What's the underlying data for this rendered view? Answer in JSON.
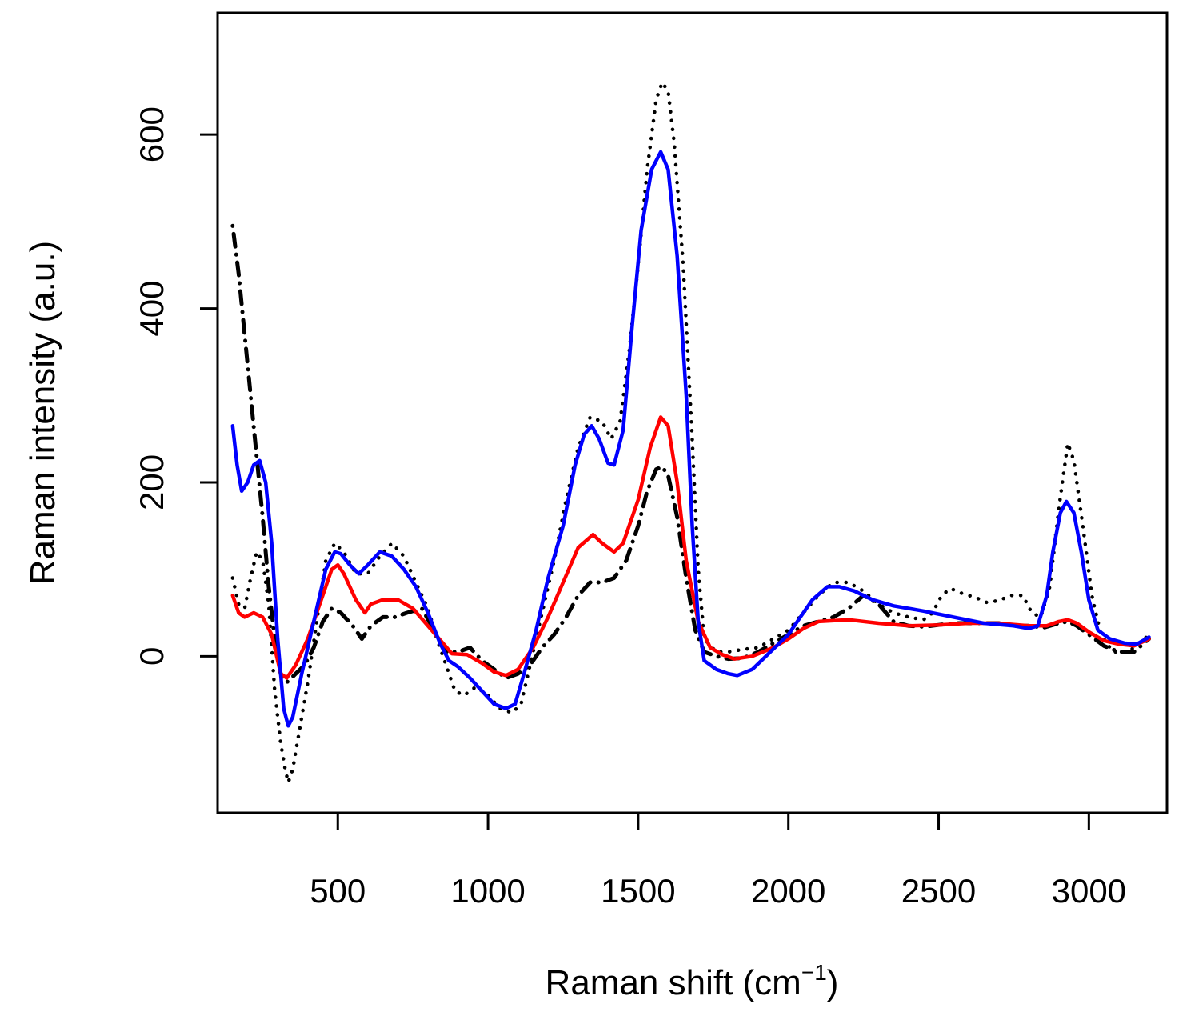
{
  "chart_data": {
    "type": "line",
    "title": "",
    "xlabel": "Raman shift (cm",
    "xlabel_superscript": "−1",
    "xlabel_suffix": ")",
    "ylabel": "Raman intensity (a.u.)",
    "xlim": [
      100,
      3260
    ],
    "ylim": [
      -180,
      740
    ],
    "x_ticks": [
      500,
      1000,
      1500,
      2000,
      2500,
      3000
    ],
    "y_ticks": [
      0,
      200,
      400,
      600
    ],
    "legend": "none",
    "grid": false,
    "series": [
      {
        "color": "#ff0000",
        "line_style": "solid",
        "points": [
          [
            150,
            70
          ],
          [
            170,
            50
          ],
          [
            190,
            45
          ],
          [
            220,
            50
          ],
          [
            250,
            45
          ],
          [
            280,
            25
          ],
          [
            310,
            -20
          ],
          [
            330,
            -25
          ],
          [
            360,
            -10
          ],
          [
            400,
            20
          ],
          [
            440,
            60
          ],
          [
            480,
            100
          ],
          [
            500,
            105
          ],
          [
            520,
            95
          ],
          [
            560,
            65
          ],
          [
            590,
            50
          ],
          [
            610,
            60
          ],
          [
            650,
            65
          ],
          [
            700,
            65
          ],
          [
            750,
            55
          ],
          [
            800,
            35
          ],
          [
            850,
            15
          ],
          [
            880,
            3
          ],
          [
            930,
            2
          ],
          [
            980,
            -8
          ],
          [
            1020,
            -18
          ],
          [
            1060,
            -22
          ],
          [
            1100,
            -15
          ],
          [
            1150,
            10
          ],
          [
            1200,
            45
          ],
          [
            1250,
            85
          ],
          [
            1300,
            125
          ],
          [
            1350,
            140
          ],
          [
            1380,
            130
          ],
          [
            1420,
            120
          ],
          [
            1450,
            130
          ],
          [
            1500,
            180
          ],
          [
            1540,
            240
          ],
          [
            1575,
            275
          ],
          [
            1600,
            265
          ],
          [
            1630,
            200
          ],
          [
            1660,
            110
          ],
          [
            1700,
            40
          ],
          [
            1740,
            10
          ],
          [
            1780,
            2
          ],
          [
            1820,
            -3
          ],
          [
            1880,
            0
          ],
          [
            1950,
            10
          ],
          [
            2000,
            20
          ],
          [
            2050,
            32
          ],
          [
            2100,
            40
          ],
          [
            2200,
            42
          ],
          [
            2300,
            38
          ],
          [
            2400,
            35
          ],
          [
            2500,
            36
          ],
          [
            2600,
            38
          ],
          [
            2700,
            38
          ],
          [
            2800,
            35
          ],
          [
            2860,
            35
          ],
          [
            2900,
            40
          ],
          [
            2930,
            42
          ],
          [
            2960,
            38
          ],
          [
            3000,
            28
          ],
          [
            3050,
            18
          ],
          [
            3100,
            14
          ],
          [
            3150,
            12
          ],
          [
            3200,
            20
          ]
        ]
      },
      {
        "color": "#0000ff",
        "line_style": "solid",
        "points": [
          [
            150,
            265
          ],
          [
            165,
            220
          ],
          [
            180,
            190
          ],
          [
            200,
            200
          ],
          [
            220,
            220
          ],
          [
            240,
            225
          ],
          [
            260,
            200
          ],
          [
            280,
            130
          ],
          [
            300,
            20
          ],
          [
            320,
            -60
          ],
          [
            335,
            -80
          ],
          [
            350,
            -70
          ],
          [
            380,
            -20
          ],
          [
            420,
            40
          ],
          [
            460,
            100
          ],
          [
            490,
            120
          ],
          [
            510,
            118
          ],
          [
            540,
            105
          ],
          [
            570,
            95
          ],
          [
            600,
            105
          ],
          [
            640,
            120
          ],
          [
            680,
            115
          ],
          [
            720,
            100
          ],
          [
            760,
            80
          ],
          [
            800,
            50
          ],
          [
            840,
            15
          ],
          [
            870,
            -5
          ],
          [
            900,
            -12
          ],
          [
            940,
            -25
          ],
          [
            980,
            -40
          ],
          [
            1020,
            -55
          ],
          [
            1060,
            -60
          ],
          [
            1090,
            -55
          ],
          [
            1120,
            -20
          ],
          [
            1160,
            30
          ],
          [
            1200,
            90
          ],
          [
            1250,
            150
          ],
          [
            1290,
            220
          ],
          [
            1320,
            255
          ],
          [
            1345,
            265
          ],
          [
            1370,
            250
          ],
          [
            1400,
            222
          ],
          [
            1420,
            220
          ],
          [
            1450,
            260
          ],
          [
            1480,
            380
          ],
          [
            1510,
            490
          ],
          [
            1545,
            560
          ],
          [
            1575,
            580
          ],
          [
            1600,
            560
          ],
          [
            1630,
            460
          ],
          [
            1660,
            300
          ],
          [
            1680,
            150
          ],
          [
            1700,
            40
          ],
          [
            1720,
            -5
          ],
          [
            1760,
            -15
          ],
          [
            1800,
            -20
          ],
          [
            1830,
            -22
          ],
          [
            1880,
            -15
          ],
          [
            1940,
            5
          ],
          [
            2000,
            25
          ],
          [
            2040,
            45
          ],
          [
            2080,
            65
          ],
          [
            2130,
            80
          ],
          [
            2170,
            80
          ],
          [
            2220,
            75
          ],
          [
            2280,
            65
          ],
          [
            2350,
            58
          ],
          [
            2450,
            52
          ],
          [
            2550,
            45
          ],
          [
            2650,
            38
          ],
          [
            2750,
            35
          ],
          [
            2800,
            32
          ],
          [
            2830,
            35
          ],
          [
            2860,
            70
          ],
          [
            2880,
            120
          ],
          [
            2905,
            165
          ],
          [
            2925,
            178
          ],
          [
            2950,
            165
          ],
          [
            2975,
            120
          ],
          [
            3000,
            65
          ],
          [
            3030,
            30
          ],
          [
            3070,
            20
          ],
          [
            3120,
            15
          ],
          [
            3160,
            14
          ],
          [
            3200,
            22
          ]
        ]
      },
      {
        "color": "#000000",
        "line_style": "dotted",
        "points": [
          [
            150,
            90
          ],
          [
            170,
            60
          ],
          [
            190,
            55
          ],
          [
            210,
            90
          ],
          [
            230,
            120
          ],
          [
            250,
            110
          ],
          [
            270,
            60
          ],
          [
            290,
            -40
          ],
          [
            310,
            -100
          ],
          [
            325,
            -130
          ],
          [
            335,
            -145
          ],
          [
            350,
            -130
          ],
          [
            370,
            -90
          ],
          [
            400,
            -30
          ],
          [
            430,
            40
          ],
          [
            460,
            110
          ],
          [
            490,
            130
          ],
          [
            520,
            120
          ],
          [
            560,
            95
          ],
          [
            600,
            95
          ],
          [
            640,
            115
          ],
          [
            680,
            130
          ],
          [
            720,
            115
          ],
          [
            760,
            85
          ],
          [
            800,
            55
          ],
          [
            830,
            20
          ],
          [
            860,
            -10
          ],
          [
            890,
            -40
          ],
          [
            920,
            -45
          ],
          [
            960,
            -35
          ],
          [
            1000,
            -45
          ],
          [
            1040,
            -60
          ],
          [
            1080,
            -65
          ],
          [
            1110,
            -55
          ],
          [
            1140,
            -10
          ],
          [
            1180,
            50
          ],
          [
            1220,
            110
          ],
          [
            1260,
            180
          ],
          [
            1300,
            240
          ],
          [
            1340,
            275
          ],
          [
            1380,
            270
          ],
          [
            1410,
            250
          ],
          [
            1440,
            270
          ],
          [
            1470,
            350
          ],
          [
            1500,
            450
          ],
          [
            1530,
            560
          ],
          [
            1560,
            640
          ],
          [
            1580,
            660
          ],
          [
            1600,
            650
          ],
          [
            1620,
            590
          ],
          [
            1650,
            450
          ],
          [
            1680,
            250
          ],
          [
            1700,
            100
          ],
          [
            1720,
            20
          ],
          [
            1760,
            5
          ],
          [
            1800,
            5
          ],
          [
            1850,
            8
          ],
          [
            1900,
            10
          ],
          [
            1950,
            20
          ],
          [
            2000,
            30
          ],
          [
            2050,
            50
          ],
          [
            2100,
            70
          ],
          [
            2150,
            85
          ],
          [
            2200,
            85
          ],
          [
            2250,
            75
          ],
          [
            2300,
            60
          ],
          [
            2350,
            50
          ],
          [
            2400,
            45
          ],
          [
            2450,
            42
          ],
          [
            2480,
            50
          ],
          [
            2510,
            70
          ],
          [
            2540,
            78
          ],
          [
            2580,
            72
          ],
          [
            2620,
            68
          ],
          [
            2660,
            62
          ],
          [
            2700,
            64
          ],
          [
            2740,
            70
          ],
          [
            2780,
            70
          ],
          [
            2810,
            50
          ],
          [
            2840,
            45
          ],
          [
            2870,
            80
          ],
          [
            2900,
            170
          ],
          [
            2930,
            245
          ],
          [
            2950,
            225
          ],
          [
            2980,
            150
          ],
          [
            3010,
            70
          ],
          [
            3040,
            25
          ],
          [
            3080,
            5
          ],
          [
            3130,
            5
          ],
          [
            3170,
            15
          ],
          [
            3200,
            25
          ]
        ]
      },
      {
        "color": "#000000",
        "line_style": "dashdot",
        "points": [
          [
            150,
            495
          ],
          [
            170,
            440
          ],
          [
            190,
            370
          ],
          [
            210,
            300
          ],
          [
            230,
            230
          ],
          [
            250,
            160
          ],
          [
            270,
            80
          ],
          [
            290,
            20
          ],
          [
            310,
            -20
          ],
          [
            330,
            -30
          ],
          [
            360,
            -20
          ],
          [
            390,
            -10
          ],
          [
            420,
            10
          ],
          [
            450,
            40
          ],
          [
            480,
            55
          ],
          [
            510,
            50
          ],
          [
            550,
            35
          ],
          [
            580,
            20
          ],
          [
            610,
            35
          ],
          [
            650,
            45
          ],
          [
            690,
            45
          ],
          [
            730,
            50
          ],
          [
            780,
            55
          ],
          [
            820,
            30
          ],
          [
            860,
            5
          ],
          [
            900,
            5
          ],
          [
            940,
            10
          ],
          [
            980,
            -5
          ],
          [
            1020,
            -15
          ],
          [
            1060,
            -25
          ],
          [
            1100,
            -20
          ],
          [
            1140,
            -10
          ],
          [
            1180,
            10
          ],
          [
            1220,
            25
          ],
          [
            1260,
            45
          ],
          [
            1300,
            70
          ],
          [
            1340,
            85
          ],
          [
            1380,
            85
          ],
          [
            1420,
            90
          ],
          [
            1460,
            110
          ],
          [
            1500,
            150
          ],
          [
            1530,
            190
          ],
          [
            1560,
            215
          ],
          [
            1580,
            218
          ],
          [
            1600,
            208
          ],
          [
            1630,
            160
          ],
          [
            1660,
            90
          ],
          [
            1690,
            30
          ],
          [
            1720,
            5
          ],
          [
            1760,
            0
          ],
          [
            1800,
            -3
          ],
          [
            1850,
            -2
          ],
          [
            1900,
            5
          ],
          [
            1950,
            15
          ],
          [
            2000,
            25
          ],
          [
            2050,
            35
          ],
          [
            2100,
            40
          ],
          [
            2150,
            45
          ],
          [
            2200,
            55
          ],
          [
            2250,
            70
          ],
          [
            2300,
            60
          ],
          [
            2350,
            40
          ],
          [
            2400,
            35
          ],
          [
            2450,
            34
          ],
          [
            2500,
            36
          ],
          [
            2550,
            38
          ],
          [
            2600,
            38
          ],
          [
            2650,
            38
          ],
          [
            2700,
            38
          ],
          [
            2750,
            35
          ],
          [
            2800,
            35
          ],
          [
            2850,
            33
          ],
          [
            2900,
            38
          ],
          [
            2930,
            40
          ],
          [
            2960,
            35
          ],
          [
            3000,
            25
          ],
          [
            3050,
            12
          ],
          [
            3100,
            5
          ],
          [
            3150,
            5
          ],
          [
            3200,
            20
          ]
        ]
      }
    ]
  }
}
